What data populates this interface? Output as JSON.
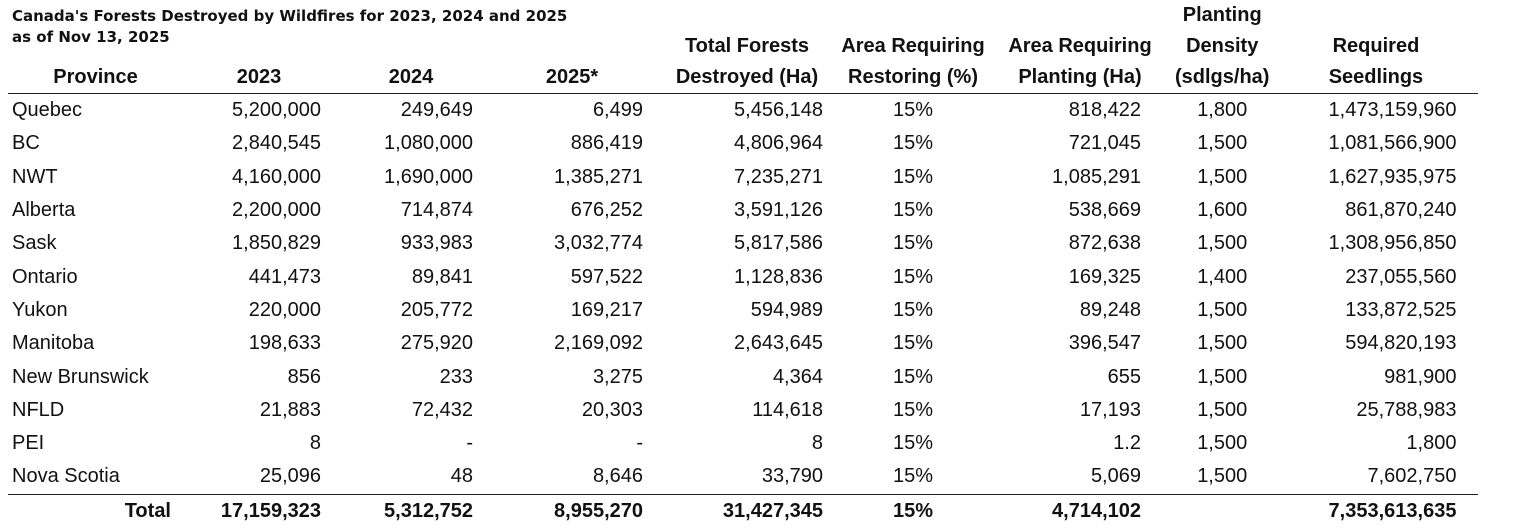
{
  "title": {
    "line1": "Canada's Forests Destroyed by Wildfires for 2023, 2024 and 2025",
    "line2": "as of Nov 13, 2025"
  },
  "headers": {
    "province": [
      "Province"
    ],
    "y2023": [
      "2023"
    ],
    "y2024": [
      "2024"
    ],
    "y2025": [
      "2025*"
    ],
    "total": [
      "Total Forests",
      "Destroyed (Ha)"
    ],
    "pct": [
      "Area Requiring",
      "Restoring (%)"
    ],
    "plant": [
      "Area Requiring",
      "Planting (Ha)"
    ],
    "density": [
      "Planting",
      "Density",
      "(sdlgs/ha)"
    ],
    "seedlings": [
      "Required",
      "Seedlings"
    ]
  },
  "rows": [
    {
      "province": "Quebec",
      "y2023": "5,200,000",
      "y2024": "249,649",
      "y2025": "6,499",
      "total": "5,456,148",
      "pct": "15%",
      "plant": "818,422",
      "density": "1,800",
      "seedlings": "1,473,159,960"
    },
    {
      "province": "BC",
      "y2023": "2,840,545",
      "y2024": "1,080,000",
      "y2025": "886,419",
      "total": "4,806,964",
      "pct": "15%",
      "plant": "721,045",
      "density": "1,500",
      "seedlings": "1,081,566,900"
    },
    {
      "province": "NWT",
      "y2023": "4,160,000",
      "y2024": "1,690,000",
      "y2025": "1,385,271",
      "total": "7,235,271",
      "pct": "15%",
      "plant": "1,085,291",
      "density": "1,500",
      "seedlings": "1,627,935,975"
    },
    {
      "province": "Alberta",
      "y2023": "2,200,000",
      "y2024": "714,874",
      "y2025": "676,252",
      "total": "3,591,126",
      "pct": "15%",
      "plant": "538,669",
      "density": "1,600",
      "seedlings": "861,870,240"
    },
    {
      "province": "Sask",
      "y2023": "1,850,829",
      "y2024": "933,983",
      "y2025": "3,032,774",
      "total": "5,817,586",
      "pct": "15%",
      "plant": "872,638",
      "density": "1,500",
      "seedlings": "1,308,956,850"
    },
    {
      "province": "Ontario",
      "y2023": "441,473",
      "y2024": "89,841",
      "y2025": "597,522",
      "total": "1,128,836",
      "pct": "15%",
      "plant": "169,325",
      "density": "1,400",
      "seedlings": "237,055,560"
    },
    {
      "province": "Yukon",
      "y2023": "220,000",
      "y2024": "205,772",
      "y2025": "169,217",
      "total": "594,989",
      "pct": "15%",
      "plant": "89,248",
      "density": "1,500",
      "seedlings": "133,872,525"
    },
    {
      "province": "Manitoba",
      "y2023": "198,633",
      "y2024": "275,920",
      "y2025": "2,169,092",
      "total": "2,643,645",
      "pct": "15%",
      "plant": "396,547",
      "density": "1,500",
      "seedlings": "594,820,193"
    },
    {
      "province": "New Brunswick",
      "y2023": "856",
      "y2024": "233",
      "y2025": "3,275",
      "total": "4,364",
      "pct": "15%",
      "plant": "655",
      "density": "1,500",
      "seedlings": "981,900"
    },
    {
      "province": "NFLD",
      "y2023": "21,883",
      "y2024": "72,432",
      "y2025": "20,303",
      "total": "114,618",
      "pct": "15%",
      "plant": "17,193",
      "density": "1,500",
      "seedlings": "25,788,983"
    },
    {
      "province": "PEI",
      "y2023": "8",
      "y2024": "-",
      "y2025": "-",
      "total": "8",
      "pct": "15%",
      "plant": "1.2",
      "density": "1,500",
      "seedlings": "1,800"
    },
    {
      "province": "Nova Scotia",
      "y2023": "25,096",
      "y2024": "48",
      "y2025": "8,646",
      "total": "33,790",
      "pct": "15%",
      "plant": "5,069",
      "density": "1,500",
      "seedlings": "7,602,750"
    }
  ],
  "totals": {
    "label": "Total",
    "y2023": "17,159,323",
    "y2024": "5,312,752",
    "y2025": "8,955,270",
    "total": "31,427,345",
    "pct": "15%",
    "plant": "4,714,102",
    "density": "",
    "seedlings": "7,353,613,635"
  }
}
